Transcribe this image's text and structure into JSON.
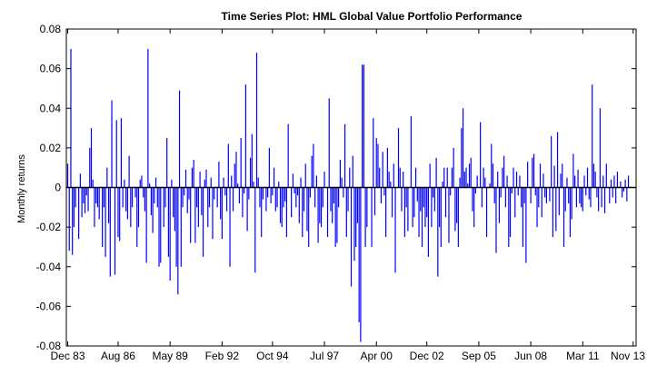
{
  "chart_data": {
    "type": "bar",
    "title": "Time Series Plot: HML Global Value Portfolio Performance",
    "xlabel": "",
    "ylabel": "Monthly returns",
    "ylim": [
      -0.08,
      0.08
    ],
    "xlim": [
      0,
      360
    ],
    "yticks": [
      0.08,
      0.06,
      0.04,
      0.02,
      0,
      -0.02,
      -0.04,
      -0.06,
      -0.08
    ],
    "ytick_labels": [
      "0.08",
      "0.06",
      "0.04",
      "0.02",
      "0",
      "-0.02",
      "-0.04",
      "-0.06",
      "-0.08"
    ],
    "xtick_labels": [
      "Dec 83",
      "Aug 86",
      "May 89",
      "Feb 92",
      "Oct 94",
      "Jul 97",
      "Apr 00",
      "Dec 02",
      "Sep 05",
      "Jun 08",
      "Mar 11",
      "Nov 13"
    ],
    "xtick_positions": [
      0,
      32,
      65,
      98,
      130,
      163,
      196,
      228,
      261,
      294,
      327,
      359
    ],
    "series_color": "#0000ff",
    "grid": false,
    "series": [
      {
        "name": "HML Global Value",
        "values": [
          0.012,
          -0.032,
          0.07,
          -0.034,
          -0.02,
          -0.01,
          0.0,
          -0.026,
          0.007,
          -0.015,
          -0.008,
          -0.013,
          -0.004,
          -0.012,
          0.02,
          0.03,
          0.004,
          -0.02,
          -0.008,
          -0.01,
          -0.016,
          0.0,
          -0.03,
          -0.01,
          -0.035,
          0.01,
          -0.018,
          -0.045,
          0.044,
          0.0,
          -0.044,
          0.034,
          -0.025,
          -0.027,
          0.035,
          -0.01,
          0.004,
          -0.012,
          -0.016,
          0.016,
          -0.02,
          -0.01,
          0.0,
          -0.005,
          -0.03,
          -0.02,
          0.004,
          0.006,
          -0.005,
          -0.012,
          -0.038,
          0.07,
          0.002,
          -0.014,
          -0.023,
          -0.008,
          0.005,
          -0.01,
          -0.04,
          -0.038,
          0.0,
          -0.02,
          -0.01,
          0.025,
          -0.035,
          -0.047,
          0.004,
          -0.015,
          -0.022,
          -0.04,
          -0.054,
          0.049,
          -0.04,
          -0.01,
          -0.004,
          0.009,
          -0.013,
          -0.006,
          -0.028,
          0.01,
          0.014,
          -0.028,
          -0.01,
          -0.02,
          0.008,
          -0.014,
          -0.035,
          0.004,
          0.009,
          -0.02,
          -0.01,
          0.005,
          -0.026,
          -0.006,
          0.0,
          -0.01,
          0.013,
          -0.016,
          -0.026,
          0.005,
          -0.004,
          -0.012,
          0.022,
          -0.04,
          0.006,
          -0.012,
          0.012,
          0.018,
          0.002,
          -0.008,
          0.025,
          -0.015,
          -0.003,
          0.052,
          -0.022,
          -0.006,
          0.015,
          0.027,
          0.003,
          -0.043,
          0.068,
          0.005,
          -0.01,
          -0.025,
          -0.006,
          0.0,
          -0.012,
          -0.005,
          0.02,
          -0.008,
          -0.004,
          0.01,
          -0.012,
          -0.01,
          0.003,
          -0.018,
          -0.02,
          -0.01,
          -0.007,
          -0.025,
          0.032,
          0.0,
          -0.015,
          0.007,
          -0.003,
          -0.01,
          -0.004,
          -0.018,
          0.005,
          -0.025,
          -0.012,
          0.012,
          -0.022,
          -0.03,
          -0.005,
          0.016,
          0.022,
          -0.01,
          0.006,
          -0.028,
          -0.018,
          -0.02,
          -0.01,
          0.008,
          0.0,
          -0.025,
          0.045,
          -0.012,
          -0.018,
          -0.008,
          -0.03,
          -0.028,
          -0.01,
          0.014,
          0.005,
          -0.005,
          0.032,
          -0.025,
          -0.012,
          0.01,
          -0.05,
          0.016,
          -0.037,
          -0.03,
          -0.018,
          -0.068,
          -0.078,
          0.062,
          0.062,
          -0.03,
          -0.02,
          0.0,
          0.0,
          -0.03,
          0.035,
          -0.014,
          0.025,
          0.022,
          0.01,
          -0.008,
          0.018,
          -0.004,
          -0.025,
          0.02,
          0.008,
          0.003,
          -0.015,
          0.012,
          -0.043,
          0.0,
          0.03,
          0.01,
          -0.012,
          0.008,
          -0.025,
          -0.01,
          -0.022,
          0.0,
          0.036,
          -0.02,
          -0.015,
          0.01,
          -0.007,
          -0.025,
          -0.012,
          -0.03,
          -0.01,
          -0.02,
          -0.015,
          -0.035,
          0.012,
          -0.02,
          -0.005,
          -0.012,
          0.015,
          -0.045,
          -0.02,
          -0.03,
          0.003,
          0.01,
          -0.015,
          0.01,
          -0.028,
          -0.004,
          0.01,
          0.02,
          -0.022,
          -0.018,
          -0.03,
          0.005,
          0.03,
          0.04,
          0.008,
          0.01,
          0.002,
          0.012,
          0.015,
          -0.012,
          -0.02,
          -0.003,
          0.006,
          0.0,
          0.033,
          -0.01,
          0.01,
          0.005,
          -0.025,
          0.0,
          0.002,
          0.022,
          0.012,
          -0.008,
          -0.033,
          0.008,
          -0.018,
          -0.005,
          0.01,
          0.016,
          -0.01,
          0.006,
          -0.03,
          -0.025,
          -0.003,
          0.01,
          -0.015,
          0.008,
          -0.004,
          0.006,
          -0.01,
          -0.03,
          -0.008,
          -0.038,
          0.013,
          0.0,
          -0.008,
          0.015,
          0.017,
          -0.004,
          -0.02,
          -0.01,
          0.012,
          -0.015,
          0.007,
          -0.005,
          -0.008,
          0.0,
          -0.007,
          0.026,
          -0.025,
          0.011,
          -0.022,
          0.028,
          -0.014,
          0.007,
          0.012,
          -0.03,
          -0.012,
          0.005,
          -0.008,
          -0.025,
          -0.016,
          0.017,
          0.006,
          -0.01,
          0.009,
          -0.008,
          -0.01,
          -0.012,
          0.006,
          -0.004,
          0.01,
          -0.006,
          -0.01,
          0.052,
          0.012,
          0.008,
          -0.005,
          -0.012,
          0.04,
          -0.01,
          0.006,
          -0.013,
          0.012,
          0.0,
          -0.008,
          0.004,
          -0.005,
          0.006,
          -0.008,
          0.008,
          0.0,
          0.003,
          -0.005,
          -0.002,
          0.004,
          -0.007,
          0.006
        ]
      }
    ]
  }
}
